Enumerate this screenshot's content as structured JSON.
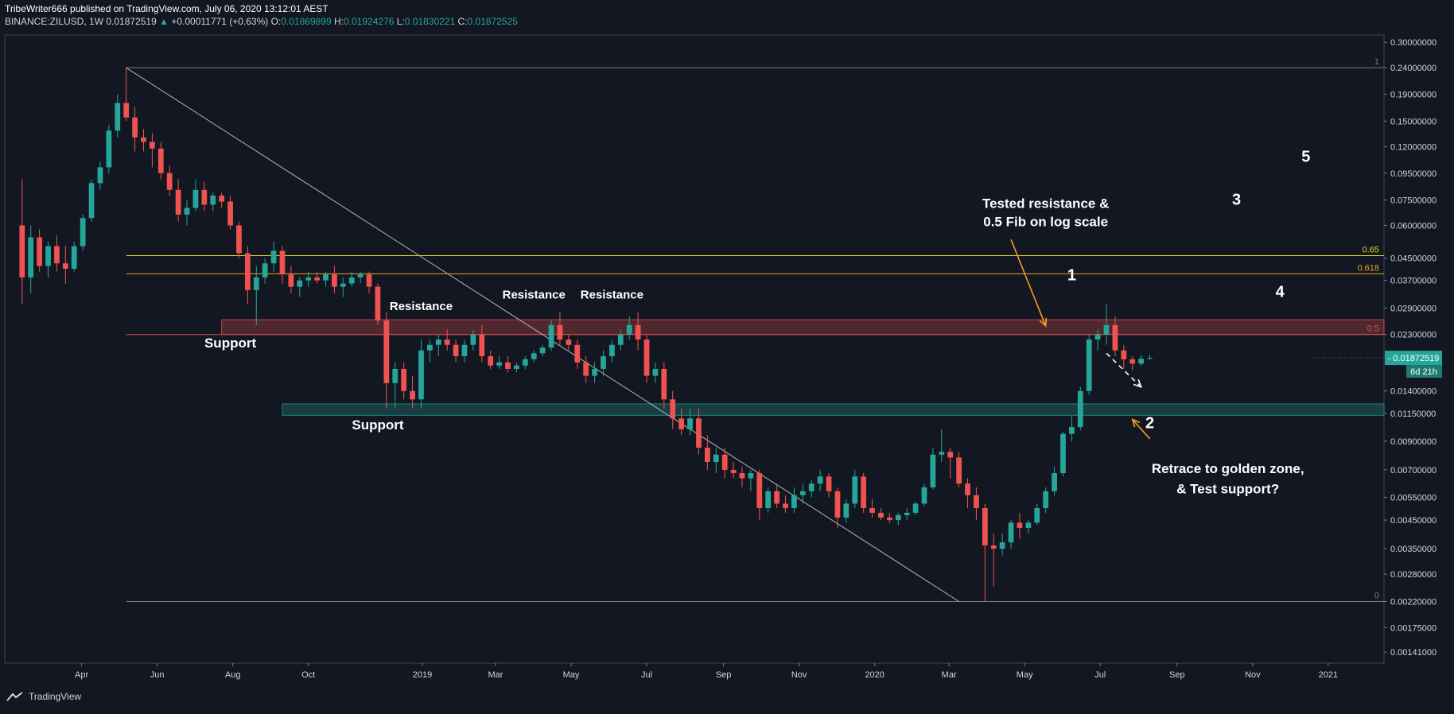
{
  "header": {
    "publisher_line": "TribeWriter666 published on TradingView.com, July 06, 2020 13:12:01 AEST",
    "symbol": "BINANCE:ZILUSD, 1W",
    "last": "0.01872519",
    "change": "+0.00011771 (+0.63%)",
    "o_label": "O:",
    "o": "0.01869899",
    "h_label": "H:",
    "h": "0.01924276",
    "l_label": "L:",
    "l": "0.01830221",
    "c_label": "C:",
    "c": "0.01872525"
  },
  "footer": {
    "brand": "TradingView"
  },
  "colors": {
    "bg": "#131722",
    "up": "#26a69a",
    "down": "#ef5350",
    "grid": "#2a2e39",
    "text": "#d1d4dc"
  },
  "chart_data": {
    "type": "candlestick",
    "y_scale": "log",
    "ylim": [
      0.00128,
      0.32
    ],
    "price_ticks": [
      0.3,
      0.24,
      0.19,
      0.15,
      0.12,
      0.095,
      0.075,
      0.06,
      0.045,
      0.037,
      0.029,
      0.023,
      0.014,
      0.0115,
      0.009,
      0.007,
      0.0055,
      0.0045,
      0.0035,
      0.0028,
      0.0022,
      0.00175,
      0.00141
    ],
    "price_tick_labels": [
      "0.30000000",
      "0.24000000",
      "0.19000000",
      "0.15000000",
      "0.12000000",
      "0.09500000",
      "0.07500000",
      "0.06000000",
      "0.04500000",
      "0.03700000",
      "0.02900000",
      "0.02300000",
      "0.01400000",
      "0.01150000",
      "0.00900000",
      "0.00700000",
      "0.00550000",
      "0.00450000",
      "0.00350000",
      "0.00280000",
      "0.00220000",
      "0.00175000",
      "0.00141000"
    ],
    "time_ticks": [
      {
        "label": "Apr",
        "x": "2018-04-01"
      },
      {
        "label": "Jun",
        "x": "2018-06-01"
      },
      {
        "label": "Aug",
        "x": "2018-08-01"
      },
      {
        "label": "Oct",
        "x": "2018-10-01"
      },
      {
        "label": "2019",
        "x": "2019-01-01"
      },
      {
        "label": "Mar",
        "x": "2019-03-01"
      },
      {
        "label": "May",
        "x": "2019-05-01"
      },
      {
        "label": "Jul",
        "x": "2019-07-01"
      },
      {
        "label": "Sep",
        "x": "2019-09-01"
      },
      {
        "label": "Nov",
        "x": "2019-11-01"
      },
      {
        "label": "2020",
        "x": "2020-01-01"
      },
      {
        "label": "Mar",
        "x": "2020-03-01"
      },
      {
        "label": "May",
        "x": "2020-05-01"
      },
      {
        "label": "Jul",
        "x": "2020-07-01"
      },
      {
        "label": "Sep",
        "x": "2020-09-01"
      },
      {
        "label": "Nov",
        "x": "2020-11-01"
      },
      {
        "label": "2021",
        "x": "2021-01-01"
      }
    ],
    "candles_start": "2018-02-12",
    "candle_interval": "1W",
    "candles": [
      [
        0.06,
        0.09,
        0.03,
        0.038
      ],
      [
        0.038,
        0.06,
        0.033,
        0.054
      ],
      [
        0.054,
        0.058,
        0.04,
        0.042
      ],
      [
        0.042,
        0.052,
        0.038,
        0.05
      ],
      [
        0.05,
        0.055,
        0.04,
        0.043
      ],
      [
        0.043,
        0.05,
        0.036,
        0.041
      ],
      [
        0.041,
        0.052,
        0.04,
        0.05
      ],
      [
        0.05,
        0.066,
        0.048,
        0.064
      ],
      [
        0.064,
        0.09,
        0.062,
        0.087
      ],
      [
        0.087,
        0.105,
        0.082,
        0.1
      ],
      [
        0.1,
        0.145,
        0.095,
        0.138
      ],
      [
        0.138,
        0.19,
        0.13,
        0.176
      ],
      [
        0.176,
        0.24,
        0.15,
        0.155
      ],
      [
        0.155,
        0.17,
        0.115,
        0.13
      ],
      [
        0.13,
        0.14,
        0.115,
        0.125
      ],
      [
        0.125,
        0.135,
        0.1,
        0.118
      ],
      [
        0.118,
        0.125,
        0.09,
        0.095
      ],
      [
        0.095,
        0.102,
        0.078,
        0.082
      ],
      [
        0.082,
        0.09,
        0.062,
        0.066
      ],
      [
        0.066,
        0.075,
        0.06,
        0.07
      ],
      [
        0.07,
        0.09,
        0.068,
        0.082
      ],
      [
        0.082,
        0.088,
        0.068,
        0.072
      ],
      [
        0.072,
        0.08,
        0.068,
        0.078
      ],
      [
        0.078,
        0.08,
        0.07,
        0.074
      ],
      [
        0.074,
        0.078,
        0.058,
        0.06
      ],
      [
        0.06,
        0.062,
        0.045,
        0.047
      ],
      [
        0.047,
        0.05,
        0.03,
        0.034
      ],
      [
        0.034,
        0.042,
        0.025,
        0.038
      ],
      [
        0.038,
        0.045,
        0.036,
        0.043
      ],
      [
        0.043,
        0.052,
        0.04,
        0.048
      ],
      [
        0.048,
        0.05,
        0.036,
        0.039
      ],
      [
        0.039,
        0.042,
        0.033,
        0.035
      ],
      [
        0.035,
        0.038,
        0.032,
        0.037
      ],
      [
        0.037,
        0.04,
        0.035,
        0.038
      ],
      [
        0.038,
        0.04,
        0.036,
        0.037
      ],
      [
        0.037,
        0.04,
        0.035,
        0.039
      ],
      [
        0.039,
        0.042,
        0.033,
        0.035
      ],
      [
        0.035,
        0.038,
        0.032,
        0.036
      ],
      [
        0.036,
        0.04,
        0.035,
        0.038
      ],
      [
        0.038,
        0.04,
        0.036,
        0.039
      ],
      [
        0.039,
        0.04,
        0.033,
        0.035
      ],
      [
        0.035,
        0.036,
        0.025,
        0.026
      ],
      [
        0.026,
        0.028,
        0.012,
        0.015
      ],
      [
        0.015,
        0.018,
        0.012,
        0.017
      ],
      [
        0.017,
        0.018,
        0.013,
        0.014
      ],
      [
        0.014,
        0.016,
        0.012,
        0.013
      ],
      [
        0.013,
        0.022,
        0.012,
        0.02
      ],
      [
        0.02,
        0.022,
        0.018,
        0.021
      ],
      [
        0.021,
        0.023,
        0.019,
        0.022
      ],
      [
        0.022,
        0.024,
        0.02,
        0.021
      ],
      [
        0.021,
        0.022,
        0.018,
        0.019
      ],
      [
        0.019,
        0.022,
        0.018,
        0.021
      ],
      [
        0.021,
        0.024,
        0.02,
        0.023
      ],
      [
        0.023,
        0.025,
        0.018,
        0.019
      ],
      [
        0.019,
        0.02,
        0.017,
        0.0175
      ],
      [
        0.0175,
        0.019,
        0.017,
        0.018
      ],
      [
        0.018,
        0.019,
        0.0165,
        0.017
      ],
      [
        0.017,
        0.018,
        0.0165,
        0.0175
      ],
      [
        0.0175,
        0.019,
        0.017,
        0.0185
      ],
      [
        0.0185,
        0.02,
        0.018,
        0.0195
      ],
      [
        0.0195,
        0.021,
        0.019,
        0.0205
      ],
      [
        0.0205,
        0.026,
        0.02,
        0.025
      ],
      [
        0.025,
        0.028,
        0.021,
        0.022
      ],
      [
        0.022,
        0.023,
        0.02,
        0.021
      ],
      [
        0.021,
        0.022,
        0.017,
        0.018
      ],
      [
        0.018,
        0.019,
        0.015,
        0.016
      ],
      [
        0.016,
        0.018,
        0.015,
        0.017
      ],
      [
        0.017,
        0.02,
        0.016,
        0.019
      ],
      [
        0.019,
        0.022,
        0.018,
        0.021
      ],
      [
        0.021,
        0.024,
        0.02,
        0.023
      ],
      [
        0.023,
        0.027,
        0.022,
        0.025
      ],
      [
        0.025,
        0.028,
        0.02,
        0.022
      ],
      [
        0.022,
        0.023,
        0.015,
        0.016
      ],
      [
        0.016,
        0.018,
        0.015,
        0.017
      ],
      [
        0.017,
        0.018,
        0.012,
        0.013
      ],
      [
        0.013,
        0.014,
        0.01,
        0.011
      ],
      [
        0.011,
        0.012,
        0.0095,
        0.01
      ],
      [
        0.01,
        0.012,
        0.0095,
        0.011
      ],
      [
        0.011,
        0.012,
        0.008,
        0.0085
      ],
      [
        0.0085,
        0.0095,
        0.007,
        0.0075
      ],
      [
        0.0075,
        0.0085,
        0.0068,
        0.008
      ],
      [
        0.008,
        0.0085,
        0.0065,
        0.007
      ],
      [
        0.007,
        0.0075,
        0.0065,
        0.0068
      ],
      [
        0.0068,
        0.0072,
        0.006,
        0.0065
      ],
      [
        0.0065,
        0.007,
        0.0058,
        0.0068
      ],
      [
        0.0068,
        0.007,
        0.0045,
        0.005
      ],
      [
        0.005,
        0.006,
        0.0048,
        0.0058
      ],
      [
        0.0058,
        0.0062,
        0.005,
        0.0052
      ],
      [
        0.0052,
        0.0056,
        0.0048,
        0.005
      ],
      [
        0.005,
        0.006,
        0.0048,
        0.0056
      ],
      [
        0.0056,
        0.0062,
        0.0052,
        0.0058
      ],
      [
        0.0058,
        0.0064,
        0.0055,
        0.0062
      ],
      [
        0.0062,
        0.007,
        0.0058,
        0.0066
      ],
      [
        0.0066,
        0.0068,
        0.0055,
        0.0058
      ],
      [
        0.0058,
        0.006,
        0.0042,
        0.0046
      ],
      [
        0.0046,
        0.0054,
        0.0044,
        0.0052
      ],
      [
        0.0052,
        0.007,
        0.005,
        0.0066
      ],
      [
        0.0066,
        0.0068,
        0.0048,
        0.005
      ],
      [
        0.005,
        0.0054,
        0.0046,
        0.0048
      ],
      [
        0.0048,
        0.005,
        0.0045,
        0.0046
      ],
      [
        0.0046,
        0.0048,
        0.0044,
        0.0045
      ],
      [
        0.0045,
        0.0048,
        0.0043,
        0.0047
      ],
      [
        0.0047,
        0.005,
        0.0045,
        0.0048
      ],
      [
        0.0048,
        0.0053,
        0.0047,
        0.0052
      ],
      [
        0.0052,
        0.0062,
        0.0051,
        0.006
      ],
      [
        0.006,
        0.0085,
        0.0059,
        0.008
      ],
      [
        0.008,
        0.01,
        0.0075,
        0.0082
      ],
      [
        0.0082,
        0.0085,
        0.0065,
        0.0078
      ],
      [
        0.0078,
        0.0082,
        0.006,
        0.0062
      ],
      [
        0.0062,
        0.0065,
        0.005,
        0.0056
      ],
      [
        0.0056,
        0.006,
        0.0045,
        0.005
      ],
      [
        0.005,
        0.0052,
        0.0022,
        0.0036
      ],
      [
        0.0036,
        0.004,
        0.0025,
        0.0035
      ],
      [
        0.0035,
        0.004,
        0.0033,
        0.0037
      ],
      [
        0.0037,
        0.0045,
        0.0035,
        0.0044
      ],
      [
        0.0044,
        0.0048,
        0.0038,
        0.0042
      ],
      [
        0.0042,
        0.0045,
        0.004,
        0.0044
      ],
      [
        0.0044,
        0.0052,
        0.0043,
        0.005
      ],
      [
        0.005,
        0.006,
        0.0048,
        0.0058
      ],
      [
        0.0058,
        0.0072,
        0.0056,
        0.0068
      ],
      [
        0.0068,
        0.0098,
        0.0066,
        0.0096
      ],
      [
        0.0096,
        0.0112,
        0.009,
        0.0102
      ],
      [
        0.0102,
        0.0145,
        0.0099,
        0.014
      ],
      [
        0.014,
        0.023,
        0.0135,
        0.022
      ],
      [
        0.022,
        0.024,
        0.02,
        0.023
      ],
      [
        0.023,
        0.03,
        0.021,
        0.025
      ],
      [
        0.025,
        0.027,
        0.019,
        0.02
      ],
      [
        0.02,
        0.021,
        0.017,
        0.0185
      ],
      [
        0.0185,
        0.019,
        0.0168,
        0.0178
      ],
      [
        0.0178,
        0.0192,
        0.0175,
        0.0186
      ],
      [
        0.01869899,
        0.01924276,
        0.01830221,
        0.01872525
      ]
    ],
    "zones": [
      {
        "name": "resistance",
        "from": 0.023,
        "to": 0.0262,
        "start": "2018-07-23",
        "color": "#ef5350"
      },
      {
        "name": "support",
        "from": 0.0113,
        "to": 0.0125,
        "start": "2018-09-10",
        "color": "#26a69a"
      }
    ],
    "fib_levels": [
      {
        "label": "1",
        "price": 0.24,
        "color": "#787b86"
      },
      {
        "label": "0.65",
        "price": 0.046,
        "color": "#e0d52a"
      },
      {
        "label": "0.618",
        "price": 0.0392,
        "color": "#e8a32a"
      },
      {
        "label": "0.5",
        "price": 0.023,
        "color": "#d05050"
      },
      {
        "label": "0",
        "price": 0.0022,
        "color": "#787b86"
      }
    ],
    "fib_start": "2018-05-07",
    "trend_line": {
      "from": [
        "2018-05-07",
        0.24
      ],
      "to": [
        "2020-03-09",
        0.0022
      ]
    },
    "annotations": [
      {
        "text": "Support",
        "x": "2018-07-30",
        "y": 0.0205,
        "size": 17
      },
      {
        "text": "Support",
        "x": "2018-11-26",
        "y": 0.01,
        "size": 17
      },
      {
        "text": "Resistance",
        "x": "2018-12-31",
        "y": 0.0285,
        "size": 15
      },
      {
        "text": "Resistance",
        "x": "2019-04-01",
        "y": 0.0315,
        "size": 15
      },
      {
        "text": "Resistance",
        "x": "2019-06-03",
        "y": 0.0315,
        "size": 15
      },
      {
        "text": "Tested resistance &",
        "x": "2020-05-18",
        "y": 0.07,
        "size": 17
      },
      {
        "text": "0.5 Fib on log scale",
        "x": "2020-05-18",
        "y": 0.0595,
        "size": 17
      },
      {
        "text": "1",
        "x": "2020-06-08",
        "y": 0.037,
        "size": 20
      },
      {
        "text": "2",
        "x": "2020-08-10",
        "y": 0.0101,
        "size": 20
      },
      {
        "text": "3",
        "x": "2020-10-19",
        "y": 0.072,
        "size": 20
      },
      {
        "text": "4",
        "x": "2020-11-23",
        "y": 0.032,
        "size": 20
      },
      {
        "text": "5",
        "x": "2020-12-14",
        "y": 0.105,
        "size": 20
      },
      {
        "text": "Retrace to golden zone,",
        "x": "2020-10-12",
        "y": 0.0068,
        "size": 17
      },
      {
        "text": "& Test support?",
        "x": "2020-10-12",
        "y": 0.0057,
        "size": 17
      }
    ],
    "arrows": [
      {
        "from": [
          "2020-04-20",
          0.053
        ],
        "to": [
          "2020-05-18",
          0.0248
        ],
        "color": "#f0a020",
        "style": "solid"
      },
      {
        "from": [
          "2020-08-10",
          0.0092
        ],
        "to": [
          "2020-07-27",
          0.0109
        ],
        "color": "#f0a020",
        "style": "solid"
      },
      {
        "from": [
          "2020-07-06",
          0.0195
        ],
        "to": [
          "2020-08-03",
          0.0145
        ],
        "color": "#ffffff",
        "style": "dashed"
      }
    ],
    "last_price": {
      "label": "0.01872519",
      "price": 0.01872519,
      "countdown": "6d 21h"
    }
  }
}
